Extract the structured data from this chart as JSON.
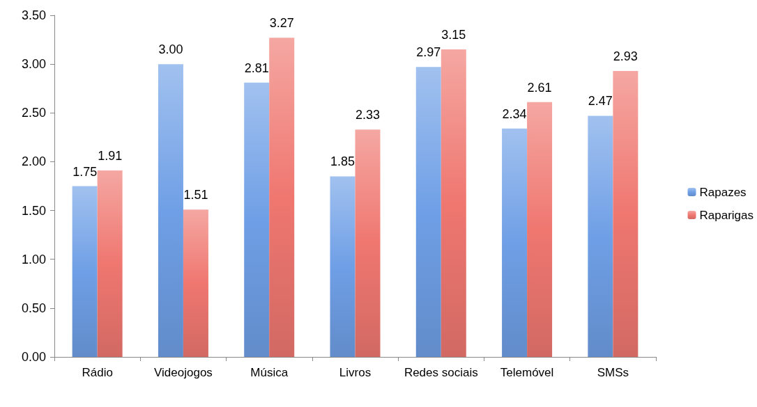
{
  "chart_data": {
    "type": "bar",
    "categories": [
      "Rádio",
      "Videojogos",
      "Música",
      "Livros",
      "Redes sociais",
      "Telemóvel",
      "SMSs"
    ],
    "series": [
      {
        "name": "Rapazes",
        "color": "#6f9fe6",
        "values": [
          1.75,
          3.0,
          2.81,
          1.85,
          2.97,
          2.34,
          2.47
        ],
        "value_labels": [
          "1.75",
          "3.00",
          "2.81",
          "1.85",
          "2.97",
          "2.34",
          "2.47"
        ]
      },
      {
        "name": "Raparigas",
        "color": "#ef7770",
        "values": [
          1.91,
          1.51,
          3.27,
          2.33,
          3.15,
          2.61,
          2.93
        ],
        "value_labels": [
          "1.91",
          "1.51",
          "3.27",
          "2.33",
          "3.15",
          "2.61",
          "2.93"
        ]
      }
    ],
    "ylim": [
      0,
      3.5
    ],
    "yticks": [
      {
        "value": 0,
        "label": "0.00"
      },
      {
        "value": 0.5,
        "label": "0.50"
      },
      {
        "value": 1,
        "label": "1.00"
      },
      {
        "value": 1.5,
        "label": "1.50"
      },
      {
        "value": 2,
        "label": "2.00"
      },
      {
        "value": 2.5,
        "label": "2.50"
      },
      {
        "value": 3,
        "label": "3.00"
      },
      {
        "value": 3.5,
        "label": "3.50"
      }
    ],
    "grid": false,
    "legend": "right"
  }
}
